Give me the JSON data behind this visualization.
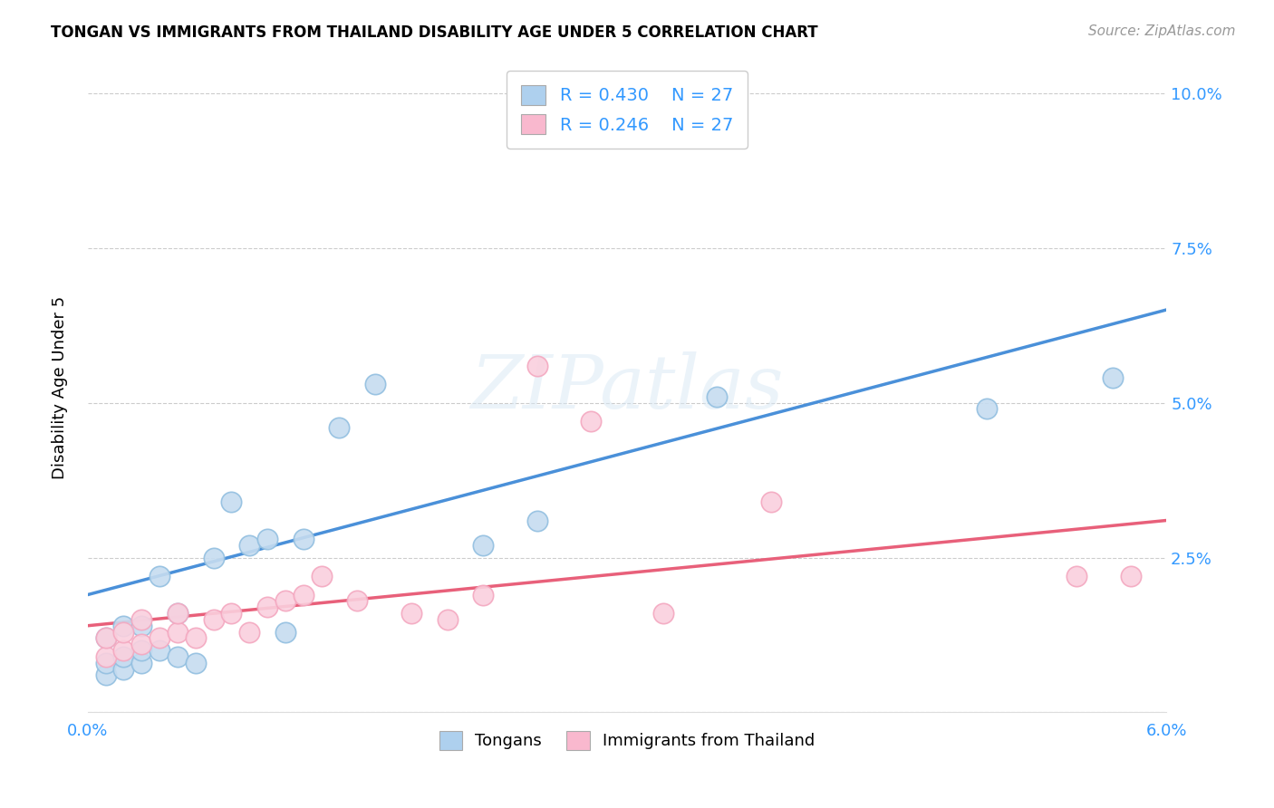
{
  "title": "TONGAN VS IMMIGRANTS FROM THAILAND DISABILITY AGE UNDER 5 CORRELATION CHART",
  "source": "Source: ZipAtlas.com",
  "ylabel": "Disability Age Under 5",
  "xmin": 0.0,
  "xmax": 0.06,
  "ymin": 0.0,
  "ymax": 0.105,
  "xticks": [
    0.0,
    0.01,
    0.02,
    0.03,
    0.04,
    0.05,
    0.06
  ],
  "xtick_labels": [
    "0.0%",
    "",
    "",
    "",
    "",
    "",
    "6.0%"
  ],
  "yticks": [
    0.0,
    0.025,
    0.05,
    0.075,
    0.1
  ],
  "ytick_labels": [
    "",
    "2.5%",
    "5.0%",
    "7.5%",
    "10.0%"
  ],
  "legend_label1": "Tongans",
  "legend_label2": "Immigrants from Thailand",
  "r1": "0.430",
  "n1": "27",
  "r2": "0.246",
  "n2": "27",
  "blue_scatter_face": "#c6dcf0",
  "blue_scatter_edge": "#92bfe0",
  "pink_scatter_face": "#fad0de",
  "pink_scatter_edge": "#f4a8c0",
  "blue_line_color": "#4a90d9",
  "pink_line_color": "#e8607a",
  "legend_blue_face": "#aed0ee",
  "legend_pink_face": "#f9b8ce",
  "background_color": "#ffffff",
  "watermark_text": "ZIPatlas",
  "tongan_x": [
    0.001,
    0.001,
    0.001,
    0.002,
    0.002,
    0.002,
    0.003,
    0.003,
    0.003,
    0.004,
    0.004,
    0.005,
    0.005,
    0.006,
    0.007,
    0.008,
    0.009,
    0.01,
    0.011,
    0.012,
    0.014,
    0.016,
    0.022,
    0.025,
    0.035,
    0.05,
    0.057
  ],
  "tongan_y": [
    0.006,
    0.008,
    0.012,
    0.007,
    0.009,
    0.014,
    0.008,
    0.01,
    0.014,
    0.01,
    0.022,
    0.009,
    0.016,
    0.008,
    0.025,
    0.034,
    0.027,
    0.028,
    0.013,
    0.028,
    0.046,
    0.053,
    0.027,
    0.031,
    0.051,
    0.049,
    0.054
  ],
  "thailand_x": [
    0.001,
    0.001,
    0.002,
    0.002,
    0.003,
    0.003,
    0.004,
    0.005,
    0.005,
    0.006,
    0.007,
    0.008,
    0.009,
    0.01,
    0.011,
    0.012,
    0.013,
    0.015,
    0.018,
    0.02,
    0.022,
    0.025,
    0.028,
    0.032,
    0.038,
    0.055,
    0.058
  ],
  "thailand_y": [
    0.009,
    0.012,
    0.01,
    0.013,
    0.011,
    0.015,
    0.012,
    0.013,
    0.016,
    0.012,
    0.015,
    0.016,
    0.013,
    0.017,
    0.018,
    0.019,
    0.022,
    0.018,
    0.016,
    0.015,
    0.019,
    0.056,
    0.047,
    0.016,
    0.034,
    0.022,
    0.022
  ],
  "blue_line_x0": 0.0,
  "blue_line_y0": 0.019,
  "blue_line_x1": 0.06,
  "blue_line_y1": 0.065,
  "pink_line_x0": 0.0,
  "pink_line_y0": 0.014,
  "pink_line_x1": 0.06,
  "pink_line_y1": 0.031
}
